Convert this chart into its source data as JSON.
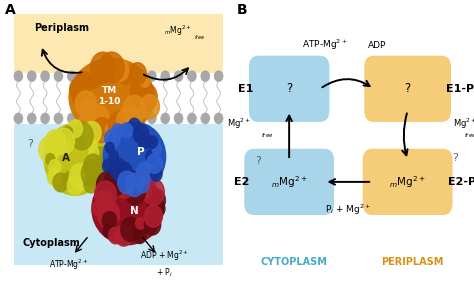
{
  "bg_color": "#ffffff",
  "panel_a": {
    "label": "A",
    "periplasm_label": "Periplasm",
    "cytoplasm_label": "Cytoplasm",
    "peri_bg": "#fce8b0",
    "cyto_bg": "#c8e8f5",
    "membrane_color": "#b8b8b8",
    "tm_color": "#d47a0a",
    "tm_color2": "#b86000",
    "tm_label": "TM\n1-10",
    "a_color": "#c8c820",
    "a_color2": "#a0a010",
    "p_color": "#2850c0",
    "p_color2": "#1a3890",
    "n_color": "#9a1828",
    "n_color2": "#701015",
    "mg_label": "Mg$^{2+}$",
    "m_subscript": "m",
    "free_label": "free",
    "q_label": "?",
    "atp_label": "ATP-Mg$^{2+}$",
    "adp_label": "ADP + Mg$^{2+}$\n+ P$_i$"
  },
  "panel_b": {
    "label": "B",
    "e1_box_color": "#a8d5ea",
    "e1p_box_color": "#f5cc78",
    "e2_box_color": "#a8d5ea",
    "e2p_box_color": "#f5cc78",
    "e1_label": "E1",
    "e1p_label": "E1-P",
    "e2_label": "E2",
    "e2p_label": "E2-P",
    "e1_content": "?",
    "e1p_content": "?",
    "e2_content": "$_m$Mg$^{2+}$",
    "e2p_content": "$_m$Mg$^{2+}$",
    "top_atp": "ATP-Mg$^{2+}$",
    "top_adp": "ADP",
    "left_mg": "Mg$^{2+}$",
    "left_free": "free",
    "right_mg": "Mg$^{2+}$",
    "right_free": "free",
    "bottom_pi": "P$_i$ + Mg$^{2+}$",
    "q_left": "?",
    "q_right": "?",
    "cytoplasm_label": "CYTOPLASM",
    "periplasm_label": "PERIPLASM",
    "cytoplasm_color": "#45aac8",
    "periplasm_color": "#d89018"
  }
}
